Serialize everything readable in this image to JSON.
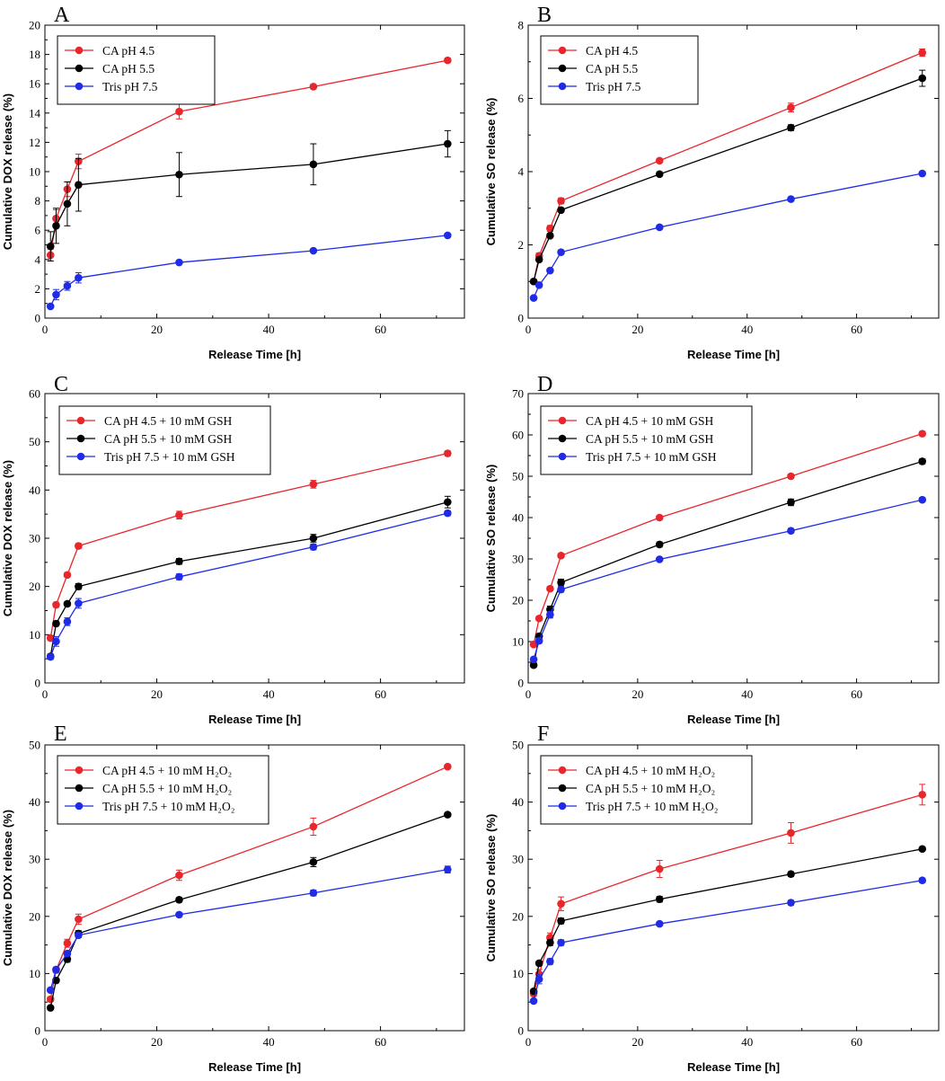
{
  "chart_data": [
    {
      "type": "line",
      "panel": "A",
      "xlabel": "Release Time [h]",
      "ylabel": "Cumulative DOX release (%)",
      "xlim": [
        0,
        75
      ],
      "ylim": [
        0,
        20
      ],
      "xticks": [
        0,
        20,
        40,
        60
      ],
      "yticks": [
        0,
        2,
        4,
        6,
        8,
        10,
        12,
        14,
        16,
        18,
        20
      ],
      "legend_position": "top-left",
      "x": [
        1,
        2,
        4,
        6,
        24,
        48,
        72
      ],
      "series": [
        {
          "name": "CA pH 4.5",
          "color": "#e8262b",
          "values": [
            4.3,
            6.8,
            8.8,
            10.7,
            14.1,
            15.8,
            17.6
          ],
          "errors": [
            0.4,
            0.6,
            0.5,
            0.5,
            0.5,
            0.15,
            0.15
          ]
        },
        {
          "name": "CA pH 5.5",
          "color": "#000000",
          "values": [
            4.9,
            6.3,
            7.8,
            9.1,
            9.8,
            10.5,
            11.9
          ],
          "errors": [
            1.0,
            1.2,
            1.5,
            1.8,
            1.5,
            1.4,
            0.9
          ]
        },
        {
          "name": "Tris pH 7.5",
          "color": "#1f2be6",
          "values": [
            0.8,
            1.6,
            2.2,
            2.75,
            3.8,
            4.6,
            5.65
          ],
          "errors": [
            0.1,
            0.35,
            0.3,
            0.35,
            0.1,
            0.1,
            0.1
          ]
        }
      ]
    },
    {
      "type": "line",
      "panel": "B",
      "xlabel": "Release Time [h]",
      "ylabel": "Cumulative SO release (%)",
      "xlim": [
        0,
        75
      ],
      "ylim": [
        0,
        8
      ],
      "xticks": [
        0,
        20,
        40,
        60
      ],
      "yticks": [
        0,
        2,
        4,
        6,
        8
      ],
      "legend_position": "top-left",
      "x": [
        1,
        2,
        4,
        6,
        24,
        48,
        72
      ],
      "series": [
        {
          "name": "CA pH 4.5",
          "color": "#e8262b",
          "values": [
            1.0,
            1.7,
            2.45,
            3.2,
            4.3,
            5.75,
            7.25
          ],
          "errors": [
            0.05,
            0.08,
            0.08,
            0.08,
            0.05,
            0.12,
            0.1
          ]
        },
        {
          "name": "CA pH 5.5",
          "color": "#000000",
          "values": [
            1.0,
            1.6,
            2.25,
            2.95,
            3.93,
            5.2,
            6.55
          ],
          "errors": [
            0.05,
            0.05,
            0.05,
            0.05,
            0.05,
            0.08,
            0.22
          ]
        },
        {
          "name": "Tris pH 7.5",
          "color": "#1f2be6",
          "values": [
            0.55,
            0.9,
            1.3,
            1.8,
            2.48,
            3.25,
            3.95
          ],
          "errors": [
            0.03,
            0.04,
            0.04,
            0.05,
            0.05,
            0.05,
            0.05
          ]
        }
      ]
    },
    {
      "type": "line",
      "panel": "C",
      "xlabel": "Release Time [h]",
      "ylabel": "Cumulative DOX release (%)",
      "xlim": [
        0,
        75
      ],
      "ylim": [
        0,
        60
      ],
      "xticks": [
        0,
        20,
        40,
        60
      ],
      "yticks": [
        0,
        10,
        20,
        30,
        40,
        50,
        60
      ],
      "legend_position": "top-left",
      "x": [
        1,
        2,
        4,
        6,
        24,
        48,
        72
      ],
      "series": [
        {
          "name": "CA pH 4.5 + 10 mM GSH",
          "color": "#e8262b",
          "values": [
            9.3,
            16.2,
            22.4,
            28.4,
            34.8,
            41.2,
            47.6
          ],
          "errors": [
            0.5,
            0.5,
            0.5,
            0.5,
            0.8,
            0.8,
            0.5
          ]
        },
        {
          "name": "CA pH 5.5 + 10 mM GSH",
          "color": "#000000",
          "values": [
            5.5,
            12.3,
            16.4,
            20.0,
            25.2,
            30.0,
            37.5
          ],
          "errors": [
            0.5,
            0.5,
            0.5,
            0.6,
            0.6,
            0.8,
            1.2
          ]
        },
        {
          "name": "Tris pH 7.5 + 10 mM GSH",
          "color": "#1f2be6",
          "values": [
            5.4,
            8.6,
            12.7,
            16.5,
            22.0,
            28.2,
            35.2
          ],
          "errors": [
            0.5,
            1.0,
            0.8,
            1.0,
            0.6,
            0.6,
            0.5
          ]
        }
      ]
    },
    {
      "type": "line",
      "panel": "D",
      "xlabel": "Release Time [h]",
      "ylabel": "Cumulative SO release (%)",
      "xlim": [
        0,
        75
      ],
      "ylim": [
        0,
        70
      ],
      "xticks": [
        0,
        20,
        40,
        60
      ],
      "yticks": [
        0,
        10,
        20,
        30,
        40,
        50,
        60,
        70
      ],
      "legend_position": "top-left",
      "x": [
        1,
        2,
        4,
        6,
        24,
        48,
        72
      ],
      "series": [
        {
          "name": "CA pH 4.5 + 10 mM GSH",
          "color": "#e8262b",
          "values": [
            9.3,
            15.6,
            22.8,
            30.8,
            40.0,
            50.0,
            60.3
          ],
          "errors": [
            0.5,
            0.5,
            0.5,
            0.5,
            0.5,
            0.5,
            0.5
          ]
        },
        {
          "name": "CA pH 5.5 + 10 mM GSH",
          "color": "#000000",
          "values": [
            4.3,
            11.3,
            17.8,
            24.3,
            33.5,
            43.7,
            53.6
          ],
          "errors": [
            0.5,
            0.6,
            0.8,
            0.8,
            0.6,
            0.8,
            0.6
          ]
        },
        {
          "name": "Tris pH 7.5 + 10 mM GSH",
          "color": "#1f2be6",
          "values": [
            5.7,
            10.2,
            16.5,
            22.6,
            29.9,
            36.8,
            44.3
          ],
          "errors": [
            0.5,
            0.6,
            0.8,
            0.6,
            0.4,
            0.5,
            0.5
          ]
        }
      ]
    },
    {
      "type": "line",
      "panel": "E",
      "xlabel": "Release Time [h]",
      "ylabel": "Cumulative DOX release (%)",
      "xlim": [
        0,
        75
      ],
      "ylim": [
        0,
        50
      ],
      "xticks": [
        0,
        20,
        40,
        60
      ],
      "yticks": [
        0,
        10,
        20,
        30,
        40,
        50
      ],
      "legend_position": "top-left",
      "x": [
        1,
        2,
        4,
        6,
        24,
        48,
        72
      ],
      "series": [
        {
          "name": "CA pH 4.5 + 10 mM H₂O₂",
          "color": "#e8262b",
          "values": [
            5.5,
            10.6,
            15.3,
            19.5,
            27.2,
            35.7,
            46.2
          ],
          "errors": [
            0.4,
            0.5,
            0.7,
            0.9,
            0.9,
            1.5,
            0.3
          ]
        },
        {
          "name": "CA pH 5.5 + 10 mM H₂O₂",
          "color": "#000000",
          "values": [
            4.0,
            8.8,
            12.5,
            17.0,
            22.9,
            29.5,
            37.8
          ],
          "errors": [
            0.3,
            0.4,
            0.5,
            0.5,
            0.4,
            0.8,
            0.3
          ]
        },
        {
          "name": "Tris pH 7.5 + 10 mM H₂O₂",
          "color": "#1f2be6",
          "values": [
            7.1,
            10.7,
            13.5,
            16.7,
            20.3,
            24.1,
            28.2
          ],
          "errors": [
            0.3,
            0.4,
            0.4,
            0.4,
            0.3,
            0.5,
            0.6
          ]
        }
      ]
    },
    {
      "type": "line",
      "panel": "F",
      "xlabel": "Release Time [h]",
      "ylabel": "Cumulative SO release (%)",
      "xlim": [
        0,
        75
      ],
      "ylim": [
        0,
        50
      ],
      "xticks": [
        0,
        20,
        40,
        60
      ],
      "yticks": [
        0,
        10,
        20,
        30,
        40,
        50
      ],
      "legend_position": "top-left",
      "x": [
        1,
        2,
        4,
        6,
        24,
        48,
        72
      ],
      "series": [
        {
          "name": "CA pH 4.5 + 10 mM H₂O₂",
          "color": "#e8262b",
          "values": [
            6.5,
            9.9,
            16.3,
            22.2,
            28.3,
            34.6,
            41.3
          ],
          "errors": [
            0.5,
            0.8,
            0.8,
            1.2,
            1.5,
            1.8,
            1.8
          ]
        },
        {
          "name": "CA pH 5.5 + 10 mM H₂O₂",
          "color": "#000000",
          "values": [
            6.9,
            11.8,
            15.4,
            19.2,
            23.0,
            27.4,
            31.8
          ],
          "errors": [
            0.3,
            0.4,
            0.5,
            0.5,
            0.5,
            0.4,
            0.3
          ]
        },
        {
          "name": "Tris pH 7.5 + 10 mM H₂O₂",
          "color": "#1f2be6",
          "values": [
            5.2,
            9.0,
            12.1,
            15.4,
            18.7,
            22.4,
            26.3
          ],
          "errors": [
            0.3,
            0.8,
            0.5,
            0.5,
            0.3,
            0.4,
            0.4
          ]
        }
      ]
    }
  ]
}
